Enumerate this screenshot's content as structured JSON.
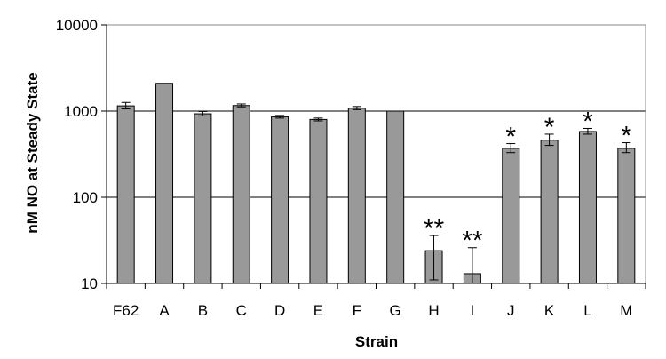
{
  "chart_data": {
    "type": "bar",
    "xlabel": "Strain",
    "ylabel": "nM NO at Steady State",
    "yscale": "log",
    "ylim": [
      10,
      10000
    ],
    "yticks": [
      10,
      100,
      1000,
      10000
    ],
    "grid": "horizontal major gridlines",
    "legend": "none",
    "categories": [
      "F62",
      "A",
      "B",
      "C",
      "D",
      "E",
      "F",
      "G",
      "H",
      "I",
      "J",
      "K",
      "L",
      "M"
    ],
    "values": [
      1150,
      2100,
      930,
      1160,
      860,
      800,
      1080,
      1000,
      24,
      13,
      370,
      460,
      580,
      370
    ],
    "error_upper": [
      1260,
      2100,
      990,
      1210,
      890,
      830,
      1130,
      1000,
      36,
      26,
      420,
      540,
      630,
      430
    ],
    "error_lower": [
      1060,
      2100,
      880,
      1120,
      830,
      770,
      1040,
      1000,
      11,
      10,
      330,
      400,
      540,
      330
    ],
    "annotations": [
      "",
      "",
      "",
      "",
      "",
      "",
      "",
      "",
      "**",
      "**",
      "*",
      "*",
      "*",
      "*"
    ],
    "colors": {
      "bar_fill": "#999999",
      "bar_stroke": "#000000",
      "gridline": "#000000",
      "plot_border": "#888888"
    }
  }
}
